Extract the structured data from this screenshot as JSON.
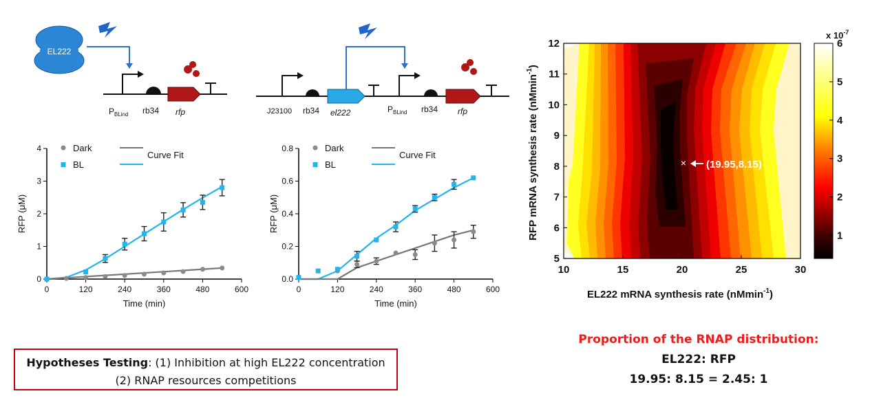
{
  "diagram": {
    "left": {
      "protein": "EL222",
      "promoter": "P",
      "promoter_sub": "BLind",
      "rbs": "rb34",
      "gene": "rfp"
    },
    "right": {
      "promoter1": "J23100",
      "rbs1": "rb34",
      "gene1": "el222",
      "promoter2": "P",
      "promoter2_sub": "BLind",
      "rbs2": "rb34",
      "gene2": "rfp"
    }
  },
  "chart_data": [
    {
      "type": "line",
      "xlabel": "Time (min)",
      "ylabel": "RFP (μM)",
      "xlim": [
        0,
        600
      ],
      "ylim": [
        0,
        4
      ],
      "x_ticks": [
        "0",
        "120",
        "240",
        "360",
        "480",
        "600"
      ],
      "y_ticks": [
        "0",
        "1",
        "2",
        "3",
        "4"
      ],
      "legend": [
        "Dark",
        "BL",
        "Curve Fit"
      ],
      "series": [
        {
          "name": "Dark",
          "x": [
            0,
            60,
            120,
            180,
            240,
            300,
            360,
            420,
            480,
            540
          ],
          "values": [
            0.0,
            0.02,
            0.05,
            0.08,
            0.11,
            0.15,
            0.19,
            0.23,
            0.3,
            0.34
          ],
          "color": "#8a8a8a"
        },
        {
          "name": "BL",
          "x": [
            0,
            120,
            180,
            240,
            300,
            360,
            420,
            480,
            540
          ],
          "values": [
            0.0,
            0.22,
            0.63,
            1.07,
            1.39,
            1.75,
            2.12,
            2.35,
            2.8
          ],
          "err": [
            0,
            0,
            0.12,
            0.18,
            0.22,
            0.28,
            0.22,
            0.22,
            0.25
          ],
          "color": "#22b4ec"
        },
        {
          "name": "Curve Fit (BL)",
          "x": [
            0,
            60,
            120,
            180,
            240,
            300,
            360,
            420,
            480,
            540
          ],
          "values": [
            0.0,
            0.05,
            0.28,
            0.62,
            1.0,
            1.38,
            1.76,
            2.13,
            2.49,
            2.83
          ],
          "color": "#22b4ec"
        },
        {
          "name": "Curve Fit (Dark)",
          "x": [
            0,
            540
          ],
          "values": [
            0.0,
            0.34
          ],
          "color": "#777777"
        }
      ]
    },
    {
      "type": "line",
      "xlabel": "Time (min)",
      "ylabel": "RFP (μM)",
      "xlim": [
        0,
        600
      ],
      "ylim": [
        0,
        0.8
      ],
      "x_ticks": [
        "0",
        "120",
        "240",
        "360",
        "480",
        "600"
      ],
      "y_ticks": [
        "0.0",
        "0.2",
        "0.4",
        "0.6",
        "0.8"
      ],
      "legend": [
        "Dark",
        "BL",
        "Curve Fit"
      ],
      "series": [
        {
          "name": "Dark",
          "x": [
            0,
            120,
            180,
            240,
            300,
            360,
            420,
            480,
            540
          ],
          "values": [
            0.01,
            0.05,
            0.09,
            0.11,
            0.16,
            0.15,
            0.22,
            0.24,
            0.29
          ],
          "err": [
            0,
            0,
            0.02,
            0.02,
            0,
            0.03,
            0.05,
            0.05,
            0.04
          ],
          "color": "#8a8a8a"
        },
        {
          "name": "BL",
          "x": [
            0,
            60,
            120,
            180,
            240,
            300,
            360,
            420,
            480,
            540
          ],
          "values": [
            0.01,
            0.05,
            0.06,
            0.14,
            0.24,
            0.32,
            0.43,
            0.5,
            0.58,
            0.62
          ],
          "err": [
            0,
            0,
            0,
            0.03,
            0,
            0.03,
            0.02,
            0.02,
            0.03,
            0
          ],
          "color": "#22b4ec"
        },
        {
          "name": "Curve Fit (BL)",
          "x": [
            0,
            60,
            120,
            180,
            240,
            300,
            360,
            420,
            480,
            540
          ],
          "values": [
            0.0,
            0.0,
            0.05,
            0.15,
            0.25,
            0.33,
            0.42,
            0.49,
            0.56,
            0.62
          ],
          "color": "#22b4ec"
        },
        {
          "name": "Curve Fit (Dark)",
          "x": [
            0,
            120,
            180,
            240,
            300,
            360,
            420,
            480,
            540
          ],
          "values": [
            0.0,
            0.0,
            0.07,
            0.11,
            0.15,
            0.19,
            0.23,
            0.27,
            0.3
          ],
          "color": "#777777"
        }
      ]
    },
    {
      "type": "heatmap",
      "xlabel": "EL222 mRNA synthesis rate (nMmin",
      "xlabel_sup": "-1",
      "xlabel_end": ")",
      "ylabel": "RFP mRNA synthesis rate (nMmin",
      "ylabel_sup": "-1",
      "ylabel_end": ")",
      "xlim": [
        10,
        30
      ],
      "ylim": [
        5,
        12
      ],
      "x_ticks": [
        "10",
        "15",
        "20",
        "25",
        "30"
      ],
      "y_ticks": [
        "5",
        "6",
        "7",
        "8",
        "9",
        "10",
        "11",
        "12"
      ],
      "colorbar": {
        "scale_label": "x 10",
        "scale_sup": "-7",
        "min": 0.4,
        "max": 6,
        "ticks": [
          "1",
          "2",
          "3",
          "4",
          "5",
          "6"
        ],
        "colormap": "hot"
      },
      "minimum_point": {
        "x": 19.95,
        "y": 8.15,
        "label": "(19.95,8.15)",
        "marker": "×"
      }
    }
  ],
  "hypotheses": {
    "bold_label": "Hypotheses Testing",
    "line1": ": (1) Inhibition at high EL222 concentration",
    "line2": "(2) RNAP resources competitions"
  },
  "proportion": {
    "title": "Proportion of the RNAP distribution:",
    "line2": "EL222: RFP",
    "line3": "19.95: 8.15 = 2.45: 1"
  },
  "colors": {
    "protein_blue": "#2b86d6",
    "gene_red": "#b01818",
    "gene_blue": "#29a9e6",
    "accent_red": "#ee1c1c"
  }
}
